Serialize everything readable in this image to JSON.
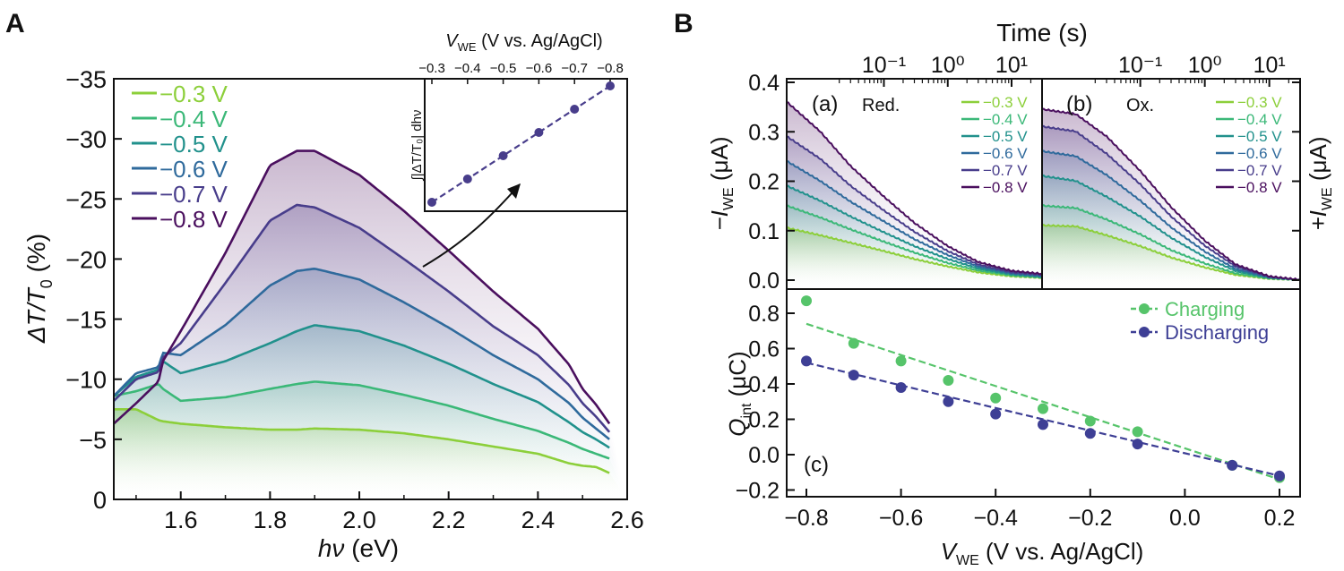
{
  "colors": {
    "v03": "#8ccf3a",
    "v04": "#3bb878",
    "v05": "#21918c",
    "v06": "#2f6a9c",
    "v07": "#483d8b",
    "v08": "#4a0f5e",
    "charging": "#56c46a",
    "discharging": "#3e3f95",
    "axis": "#111111"
  },
  "panelA": {
    "label": "A",
    "ylabel_main": "ΔT/T",
    "ylabel_sub": "0",
    "ylabel_unit": " (%)",
    "xlabel_main": "hν",
    "xlabel_unit": " (eV)",
    "yticks": [
      "−35",
      "−30",
      "−25",
      "−20",
      "−15",
      "−10",
      "−5",
      "0"
    ],
    "xticks": [
      "1.6",
      "1.8",
      "2.0",
      "2.2",
      "2.4",
      "2.6"
    ],
    "legend": [
      "−0.3 V",
      "−0.4 V",
      "−0.5 V",
      "−0.6 V",
      "−0.7 V",
      "−0.8 V"
    ],
    "inset": {
      "xlabel_main": "V",
      "xlabel_sub": "WE",
      "xlabel_unit": " (V vs. Ag/AgCl)",
      "ticks": [
        "−0.3",
        "−0.4",
        "−0.5",
        "−0.6",
        "−0.7",
        "−0.8"
      ],
      "ylabel": "∫|ΔT/T₀| dhν"
    }
  },
  "panelB": {
    "label": "B",
    "time_label": "Time (s)",
    "time_ticks": [
      "10⁻¹",
      "10⁰",
      "10¹"
    ],
    "a_label": "(a)",
    "a_title": "Red.",
    "b_label": "(b)",
    "b_title": "Ox.",
    "c_label": "(c)",
    "left_ylabel_pre": "−I",
    "left_ylabel_sub": "WE",
    "left_ylabel_unit": " (μA)",
    "right_ylabel_pre": "+I",
    "right_ylabel_sub": "WE",
    "right_ylabel_unit": " (μA)",
    "current_yticks": [
      "0.4",
      "0.3",
      "0.2",
      "0.1",
      "0.0"
    ],
    "legend": [
      "−0.3 V",
      "−0.4 V",
      "−0.5 V",
      "−0.6 V",
      "−0.7 V",
      "−0.8 V"
    ],
    "q_ylabel_pre": "Q",
    "q_ylabel_sub": "int",
    "q_ylabel_unit": " (μC)",
    "q_yticks": [
      "0.8",
      "0.6",
      "0.4",
      "0.2",
      "0.0",
      "−0.2"
    ],
    "q_xticks": [
      "−0.8",
      "−0.6",
      "−0.4",
      "−0.2",
      "0.0",
      "0.2"
    ],
    "q_xlabel_pre": "V",
    "q_xlabel_sub": "WE",
    "q_xlabel_unit": " (V vs. Ag/AgCl)",
    "q_legend": [
      "Charging",
      "Discharging"
    ]
  },
  "chart_data": [
    {
      "type": "area",
      "panel": "A",
      "xlabel": "hν (eV)",
      "ylabel": "ΔT/T0 (%)",
      "xlim": [
        1.45,
        2.6
      ],
      "ylim": [
        0,
        -35
      ],
      "x": [
        1.45,
        1.5,
        1.55,
        1.56,
        1.6,
        1.7,
        1.8,
        1.86,
        1.9,
        2.0,
        2.1,
        2.2,
        2.3,
        2.4,
        2.47,
        2.5,
        2.53,
        2.56
      ],
      "series": [
        {
          "name": "−0.3 V",
          "values": [
            -7.5,
            -7.5,
            -6.6,
            -6.5,
            -6.3,
            -6.0,
            -5.8,
            -5.8,
            -5.9,
            -5.8,
            -5.5,
            -5.0,
            -4.4,
            -3.8,
            -3.0,
            -2.8,
            -2.7,
            -2.2
          ]
        },
        {
          "name": "−0.4 V",
          "values": [
            -8.6,
            -9.0,
            -9.6,
            -9.2,
            -8.2,
            -8.5,
            -9.2,
            -9.6,
            -9.8,
            -9.5,
            -8.7,
            -7.8,
            -6.7,
            -5.7,
            -4.7,
            -4.2,
            -3.8,
            -3.4
          ]
        },
        {
          "name": "−0.5 V",
          "values": [
            -8.6,
            -10.2,
            -10.8,
            -11.5,
            -10.5,
            -11.5,
            -13.0,
            -14.0,
            -14.5,
            -14.0,
            -12.8,
            -11.3,
            -9.6,
            -8.1,
            -6.4,
            -5.6,
            -5.0,
            -4.3
          ]
        },
        {
          "name": "−0.6 V",
          "values": [
            -8.6,
            -10.5,
            -11.0,
            -12.2,
            -12.0,
            -14.5,
            -17.8,
            -19.0,
            -19.2,
            -18.3,
            -16.4,
            -14.3,
            -12.0,
            -10.0,
            -8.0,
            -6.8,
            -5.9,
            -5.0
          ]
        },
        {
          "name": "−0.7 V",
          "values": [
            -8.2,
            -10.0,
            -10.6,
            -11.8,
            -13.0,
            -18.0,
            -23.2,
            -24.5,
            -24.3,
            -22.6,
            -20.0,
            -17.3,
            -14.4,
            -12.0,
            -9.5,
            -8.0,
            -6.9,
            -5.6
          ]
        },
        {
          "name": "−0.8 V",
          "values": [
            -6.3,
            -8.0,
            -9.8,
            -11.5,
            -14.0,
            -20.5,
            -27.8,
            -29.0,
            -29.0,
            -27.0,
            -24.0,
            -20.7,
            -17.3,
            -14.2,
            -11.2,
            -9.2,
            -7.9,
            -6.3
          ]
        }
      ]
    },
    {
      "type": "line",
      "panel": "A-inset",
      "xlabel": "VWE (V vs. Ag/AgCl)",
      "ylabel": "∫|ΔT/T0| dhν",
      "x": [
        -0.3,
        -0.4,
        -0.5,
        -0.6,
        -0.7,
        -0.8
      ],
      "values": [
        0.0,
        0.2,
        0.4,
        0.6,
        0.8,
        1.0
      ]
    },
    {
      "type": "line",
      "panel": "B(a)",
      "title": "Red.",
      "xlabel": "Time (s)",
      "ylabel": "−IWE (μA)",
      "xscale": "log",
      "xlim": [
        0.003,
        30
      ],
      "ylim": [
        -0.02,
        0.4
      ],
      "x": [
        0.003,
        0.01,
        0.03,
        0.1,
        0.3,
        1,
        3,
        10,
        30
      ],
      "series": [
        {
          "name": "−0.3 V",
          "values": [
            0.105,
            0.09,
            0.075,
            0.058,
            0.042,
            0.027,
            0.015,
            0.007,
            0.004
          ]
        },
        {
          "name": "−0.4 V",
          "values": [
            0.15,
            0.126,
            0.102,
            0.077,
            0.055,
            0.034,
            0.019,
            0.009,
            0.005
          ]
        },
        {
          "name": "−0.5 V",
          "values": [
            0.19,
            0.16,
            0.128,
            0.096,
            0.068,
            0.042,
            0.023,
            0.011,
            0.006
          ]
        },
        {
          "name": "−0.6 V",
          "values": [
            0.24,
            0.2,
            0.158,
            0.118,
            0.082,
            0.05,
            0.027,
            0.013,
            0.008
          ]
        },
        {
          "name": "−0.7 V",
          "values": [
            0.29,
            0.245,
            0.19,
            0.14,
            0.097,
            0.058,
            0.031,
            0.015,
            0.01
          ]
        },
        {
          "name": "−0.8 V",
          "values": [
            0.36,
            0.3,
            0.23,
            0.168,
            0.115,
            0.068,
            0.036,
            0.018,
            0.012
          ]
        }
      ]
    },
    {
      "type": "line",
      "panel": "B(b)",
      "title": "Ox.",
      "xlabel": "Time (s)",
      "ylabel": "+IWE (μA)",
      "xscale": "log",
      "xlim": [
        0.003,
        30
      ],
      "ylim": [
        -0.02,
        0.4
      ],
      "x": [
        0.003,
        0.01,
        0.03,
        0.1,
        0.3,
        1,
        3,
        10,
        30
      ],
      "series": [
        {
          "name": "−0.3 V",
          "values": [
            0.11,
            0.108,
            0.09,
            0.068,
            0.045,
            0.025,
            0.01,
            0.002,
            0.0
          ]
        },
        {
          "name": "−0.4 V",
          "values": [
            0.15,
            0.145,
            0.122,
            0.092,
            0.06,
            0.033,
            0.013,
            0.003,
            0.0
          ]
        },
        {
          "name": "−0.5 V",
          "values": [
            0.21,
            0.2,
            0.168,
            0.128,
            0.085,
            0.046,
            0.018,
            0.004,
            0.0
          ]
        },
        {
          "name": "−0.6 V",
          "values": [
            0.26,
            0.25,
            0.212,
            0.16,
            0.106,
            0.057,
            0.022,
            0.005,
            0.0
          ]
        },
        {
          "name": "−0.7 V",
          "values": [
            0.31,
            0.3,
            0.255,
            0.193,
            0.128,
            0.069,
            0.027,
            0.006,
            0.0
          ]
        },
        {
          "name": "−0.8 V",
          "values": [
            0.345,
            0.335,
            0.29,
            0.22,
            0.147,
            0.079,
            0.031,
            0.007,
            0.0
          ]
        }
      ]
    },
    {
      "type": "scatter",
      "panel": "B(c)",
      "xlabel": "VWE (V vs. Ag/AgCl)",
      "ylabel": "Qint (μC)",
      "xlim": [
        -0.85,
        0.25
      ],
      "ylim": [
        -0.22,
        0.92
      ],
      "x": [
        -0.8,
        -0.7,
        -0.6,
        -0.5,
        -0.4,
        -0.3,
        -0.2,
        -0.1,
        0.1,
        0.2
      ],
      "series": [
        {
          "name": "Charging",
          "values": [
            0.87,
            0.63,
            0.53,
            0.42,
            0.32,
            0.26,
            0.19,
            0.13,
            -0.06,
            -0.13
          ],
          "fit": [
            0.74,
            -0.14
          ]
        },
        {
          "name": "Discharging",
          "values": [
            0.53,
            0.45,
            0.38,
            0.3,
            0.23,
            0.17,
            0.12,
            0.06,
            -0.06,
            -0.12
          ],
          "fit": [
            0.52,
            -0.12
          ]
        }
      ]
    }
  ]
}
